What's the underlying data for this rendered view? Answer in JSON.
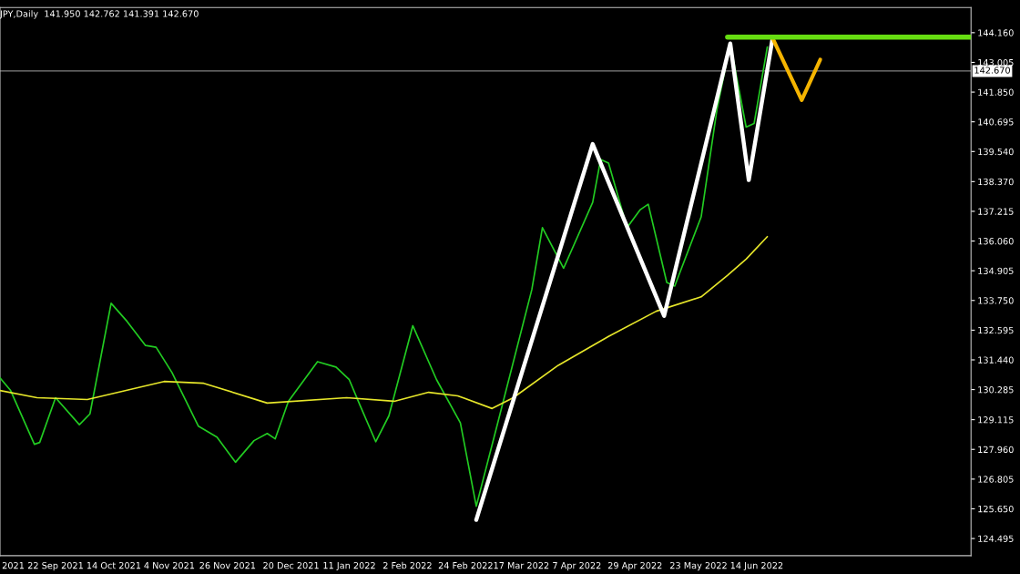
{
  "chart_data": {
    "type": "line",
    "title": "JPY,Daily  141.950 142.762 141.391 142.670",
    "xlim": [
      "2021-09-01",
      "2022-09-03"
    ],
    "ylim": [
      123.83,
      145.14
    ],
    "xticks": [
      {
        "value": "2021-09-06",
        "label": "2021"
      },
      {
        "value": "2021-09-22",
        "label": "22 Sep 2021"
      },
      {
        "value": "2021-10-14",
        "label": "14 Oct 2021"
      },
      {
        "value": "2021-11-04",
        "label": "4 Nov 2021"
      },
      {
        "value": "2021-11-26",
        "label": "26 Nov 2021"
      },
      {
        "value": "2021-12-20",
        "label": "20 Dec 2021"
      },
      {
        "value": "2022-01-11",
        "label": "11 Jan 2022"
      },
      {
        "value": "2022-02-02",
        "label": "2 Feb 2022"
      },
      {
        "value": "2022-02-24",
        "label": "24 Feb 2022"
      },
      {
        "value": "2022-03-17",
        "label": "17 Mar 2022"
      },
      {
        "value": "2022-04-07",
        "label": "7 Apr 2022"
      },
      {
        "value": "2022-04-29",
        "label": "29 Apr 2022"
      },
      {
        "value": "2022-05-23",
        "label": "23 May 2022"
      },
      {
        "value": "2022-06-14",
        "label": "14 Jun 2022"
      }
    ],
    "yticks": [
      {
        "value": 124.495,
        "label": "124.495"
      },
      {
        "value": 125.65,
        "label": "125.650"
      },
      {
        "value": 126.805,
        "label": "126.805"
      },
      {
        "value": 127.96,
        "label": "127.960"
      },
      {
        "value": 129.115,
        "label": "129.115"
      },
      {
        "value": 130.285,
        "label": "130.285"
      },
      {
        "value": 131.44,
        "label": "131.440"
      },
      {
        "value": 132.595,
        "label": "132.595"
      },
      {
        "value": 133.75,
        "label": "133.750"
      },
      {
        "value": 134.905,
        "label": "134.905"
      },
      {
        "value": 136.06,
        "label": "136.060"
      },
      {
        "value": 137.215,
        "label": "137.215"
      },
      {
        "value": 138.37,
        "label": "138.370"
      },
      {
        "value": 139.54,
        "label": "139.540"
      },
      {
        "value": 140.695,
        "label": "140.695"
      },
      {
        "value": 141.85,
        "label": "141.850"
      },
      {
        "value": 143.005,
        "label": "143.005"
      },
      {
        "value": 144.16,
        "label": "144.160"
      }
    ],
    "grid": false,
    "marker": "none",
    "line_style": "solid",
    "ref_lines": [
      {
        "axis": "y",
        "value": 142.67,
        "label": "142.670",
        "color": "#808080"
      }
    ],
    "series": [
      {
        "color": "#22cc22",
        "x": [
          "2021-09-01",
          "2021-09-05",
          "2021-09-14",
          "2021-09-16",
          "2021-09-22",
          "2021-10-01",
          "2021-10-05",
          "2021-10-13",
          "2021-10-19",
          "2021-10-26",
          "2021-10-30",
          "2021-11-05",
          "2021-11-15",
          "2021-11-22",
          "2021-11-29",
          "2021-12-06",
          "2021-12-11",
          "2021-12-14",
          "2021-12-19",
          "2021-12-30",
          "2022-01-06",
          "2022-01-11",
          "2022-01-15",
          "2022-01-21",
          "2022-01-26",
          "2022-02-04",
          "2022-02-13",
          "2022-02-22",
          "2022-02-28",
          "2022-03-08",
          "2022-03-21",
          "2022-03-25",
          "2022-04-02",
          "2022-04-13",
          "2022-04-16",
          "2022-04-19",
          "2022-04-26",
          "2022-05-01",
          "2022-05-04",
          "2022-05-11",
          "2022-05-14",
          "2022-05-24",
          "2022-05-30",
          "2022-06-04",
          "2022-06-10",
          "2022-06-13",
          "2022-06-18"
        ],
        "values": [
          130.74,
          130.25,
          128.16,
          128.23,
          129.97,
          128.92,
          129.34,
          133.64,
          132.94,
          132.0,
          131.93,
          130.95,
          128.86,
          128.44,
          127.46,
          128.3,
          128.58,
          128.37,
          129.83,
          131.37,
          131.16,
          130.67,
          129.69,
          128.26,
          129.27,
          132.77,
          130.67,
          128.99,
          125.75,
          128.94,
          134.17,
          136.58,
          135.0,
          137.56,
          139.23,
          139.09,
          136.58,
          137.28,
          137.49,
          134.45,
          134.31,
          137.0,
          141.19,
          143.74,
          140.49,
          140.63,
          143.6
        ]
      },
      {
        "color": "#e6e62a",
        "x": [
          "2021-09-01",
          "2021-09-15",
          "2021-10-04",
          "2021-11-02",
          "2021-11-17",
          "2021-12-11",
          "2022-01-10",
          "2022-01-28",
          "2022-02-10",
          "2022-02-21",
          "2022-03-06",
          "2022-03-14",
          "2022-03-31",
          "2022-04-19",
          "2022-05-07",
          "2022-05-24",
          "2022-06-03",
          "2022-06-10",
          "2022-06-18"
        ],
        "values": [
          130.25,
          129.97,
          129.9,
          130.6,
          130.53,
          129.76,
          129.97,
          129.83,
          130.18,
          130.04,
          129.55,
          129.97,
          131.23,
          132.35,
          133.33,
          133.89,
          134.73,
          135.36,
          136.23
        ]
      },
      {
        "color": "#ffffff",
        "x": [
          "2022-02-28",
          "2022-04-13",
          "2022-05-10",
          "2022-06-04",
          "2022-06-11",
          "2022-06-20"
        ],
        "values": [
          125.22,
          139.83,
          133.15,
          143.74,
          138.43,
          143.95
        ]
      },
      {
        "color": "#f5b400",
        "x": [
          "2022-06-20",
          "2022-07-01",
          "2022-07-08"
        ],
        "values": [
          143.95,
          141.54,
          143.11
        ]
      },
      {
        "color": "#66dd11",
        "x": [
          "2022-06-03",
          "2022-09-03"
        ],
        "values": [
          143.99,
          143.99
        ]
      }
    ]
  }
}
